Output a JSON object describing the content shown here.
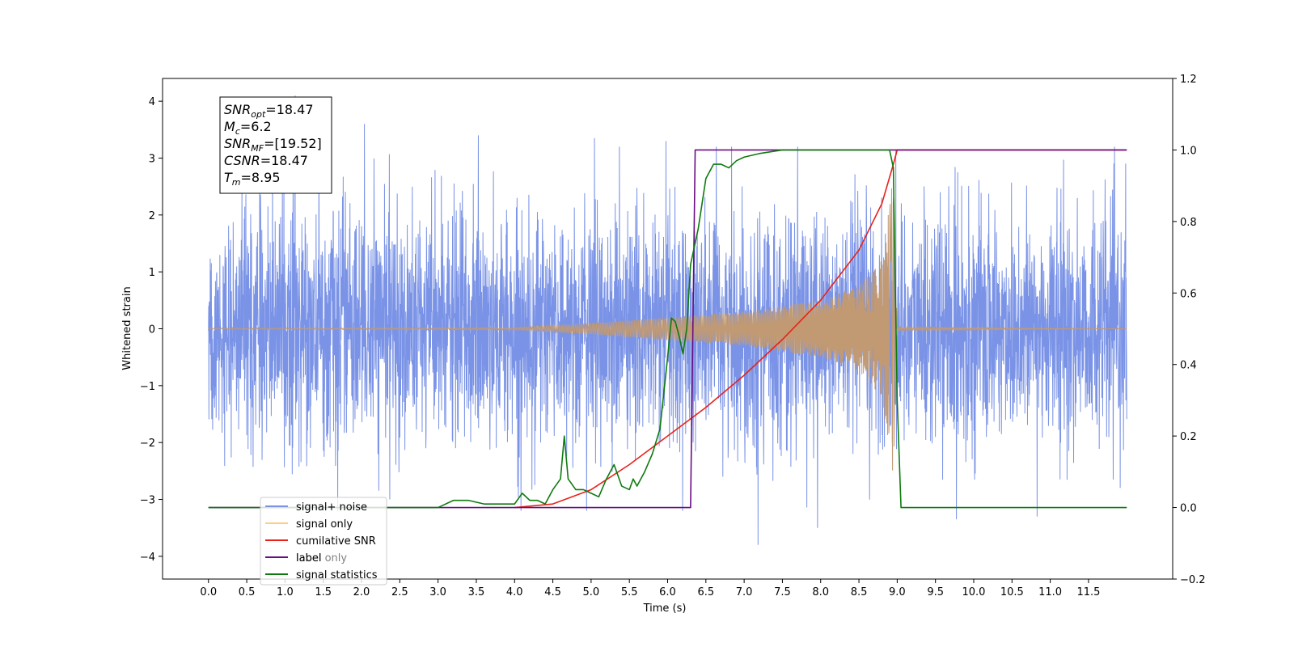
{
  "chart_data": {
    "type": "line",
    "title": "",
    "xlabel": "Time (s)",
    "ylabel": "Whitened strain",
    "xlim": [
      -0.6,
      12.6
    ],
    "ylim": [
      -4.4,
      4.4
    ],
    "y2lim": [
      -0.2,
      1.2
    ],
    "x_ticks": [
      0.0,
      0.5,
      1.0,
      1.5,
      2.0,
      2.5,
      3.0,
      3.5,
      4.0,
      4.5,
      5.0,
      5.5,
      6.0,
      6.5,
      7.0,
      7.5,
      8.0,
      8.5,
      9.0,
      9.5,
      10.0,
      10.5,
      11.0,
      11.5
    ],
    "x_tick_labels": [
      "0.0",
      "0.5",
      "1.0",
      "1.5",
      "2.0",
      "2.5",
      "3.0",
      "3.5",
      "4.0",
      "4.5",
      "5.0",
      "5.5",
      "6.0",
      "6.5",
      "7.0",
      "7.5",
      "8.0",
      "8.5",
      "9.0",
      "9.5",
      "10.0",
      "10.5",
      "11.0",
      "11.5"
    ],
    "y_ticks": [
      -4,
      -3,
      -2,
      -1,
      0,
      1,
      2,
      3,
      4
    ],
    "y_tick_labels": [
      "−4",
      "−3",
      "−2",
      "−1",
      "0",
      "1",
      "2",
      "3",
      "4"
    ],
    "y2_ticks": [
      -0.2,
      0.0,
      0.2,
      0.4,
      0.6,
      0.8,
      1.0,
      1.2
    ],
    "y2_tick_labels": [
      "−0.2",
      "0.0",
      "0.2",
      "0.4",
      "0.6",
      "0.8",
      "1.0",
      "1.2"
    ],
    "grid": false,
    "legend_placement": "lower-left",
    "info_box": [
      {
        "main": "SNR",
        "sub": "opt",
        "rest": "=18.47"
      },
      {
        "main": "M",
        "sub": "c",
        "rest": "=6.2"
      },
      {
        "main": "SNR",
        "sub": "MF",
        "rest": "=[19.52]"
      },
      {
        "main": "CSNR",
        "sub": "",
        "rest": "=18.47"
      },
      {
        "main": "T",
        "sub": "m",
        "rest": "=8.95"
      }
    ],
    "series": [
      {
        "name": "signal+ noise",
        "axis": "left",
        "color": "#7a93e6",
        "kind": "noise",
        "x_range": [
          0.0,
          12.0
        ],
        "std": 1.0,
        "peak_values": [
          4.1,
          3.6,
          3.4,
          3.35,
          3.3,
          -3.8,
          -3.5,
          -3.35,
          -3.3
        ]
      },
      {
        "name": "signal only",
        "axis": "left",
        "color": "#c19a74",
        "kind": "chirp",
        "x_range": [
          0.0,
          12.0
        ],
        "merger_time": 8.95,
        "amplitude_points": [
          [
            0.0,
            0.01
          ],
          [
            4.0,
            0.02
          ],
          [
            5.0,
            0.1
          ],
          [
            6.0,
            0.2
          ],
          [
            7.0,
            0.3
          ],
          [
            8.0,
            0.5
          ],
          [
            8.5,
            0.75
          ],
          [
            8.8,
            1.2
          ],
          [
            8.95,
            2.7
          ],
          [
            9.0,
            0.03
          ],
          [
            12.0,
            0.0
          ]
        ]
      },
      {
        "name": "cumilative SNR",
        "axis": "right",
        "color": "#e8221b",
        "x": [
          4.0,
          4.5,
          5.0,
          5.5,
          6.0,
          6.5,
          7.0,
          7.5,
          8.0,
          8.5,
          8.8,
          8.95,
          9.0,
          12.0
        ],
        "y": [
          0.0,
          0.01,
          0.05,
          0.12,
          0.2,
          0.28,
          0.37,
          0.47,
          0.58,
          0.72,
          0.85,
          0.96,
          1.0,
          1.0
        ]
      },
      {
        "name": "label",
        "axis": "right",
        "color": "#6a0d83",
        "x": [
          0.0,
          6.3,
          6.36,
          8.95,
          8.96,
          12.0
        ],
        "y": [
          0.0,
          0.0,
          1.0,
          1.0,
          1.0,
          1.0
        ]
      },
      {
        "name": "signal statistics",
        "axis": "right",
        "color": "#0f7a0f",
        "x": [
          0.0,
          3.0,
          3.2,
          3.4,
          3.6,
          3.8,
          4.0,
          4.1,
          4.2,
          4.3,
          4.4,
          4.5,
          4.6,
          4.65,
          4.7,
          4.8,
          4.9,
          5.0,
          5.1,
          5.2,
          5.3,
          5.4,
          5.5,
          5.55,
          5.6,
          5.7,
          5.8,
          5.9,
          6.0,
          6.05,
          6.1,
          6.15,
          6.2,
          6.25,
          6.3,
          6.4,
          6.5,
          6.6,
          6.7,
          6.8,
          6.9,
          7.0,
          7.2,
          7.5,
          8.0,
          8.5,
          8.9,
          8.95,
          9.0,
          9.05,
          12.0
        ],
        "y": [
          0.0,
          0.0,
          0.02,
          0.02,
          0.01,
          0.01,
          0.01,
          0.04,
          0.02,
          0.02,
          0.01,
          0.05,
          0.08,
          0.2,
          0.08,
          0.05,
          0.05,
          0.04,
          0.03,
          0.08,
          0.12,
          0.06,
          0.05,
          0.08,
          0.06,
          0.1,
          0.15,
          0.22,
          0.42,
          0.53,
          0.52,
          0.48,
          0.43,
          0.5,
          0.68,
          0.78,
          0.92,
          0.96,
          0.96,
          0.95,
          0.97,
          0.98,
          0.99,
          1.0,
          1.0,
          1.0,
          1.0,
          0.95,
          0.3,
          0.0,
          0.0
        ]
      }
    ],
    "legend": [
      "signal+ noise",
      "signal only",
      "cumilative SNR",
      "label",
      "signal statistics"
    ],
    "legend_overlap_text": "label only"
  }
}
